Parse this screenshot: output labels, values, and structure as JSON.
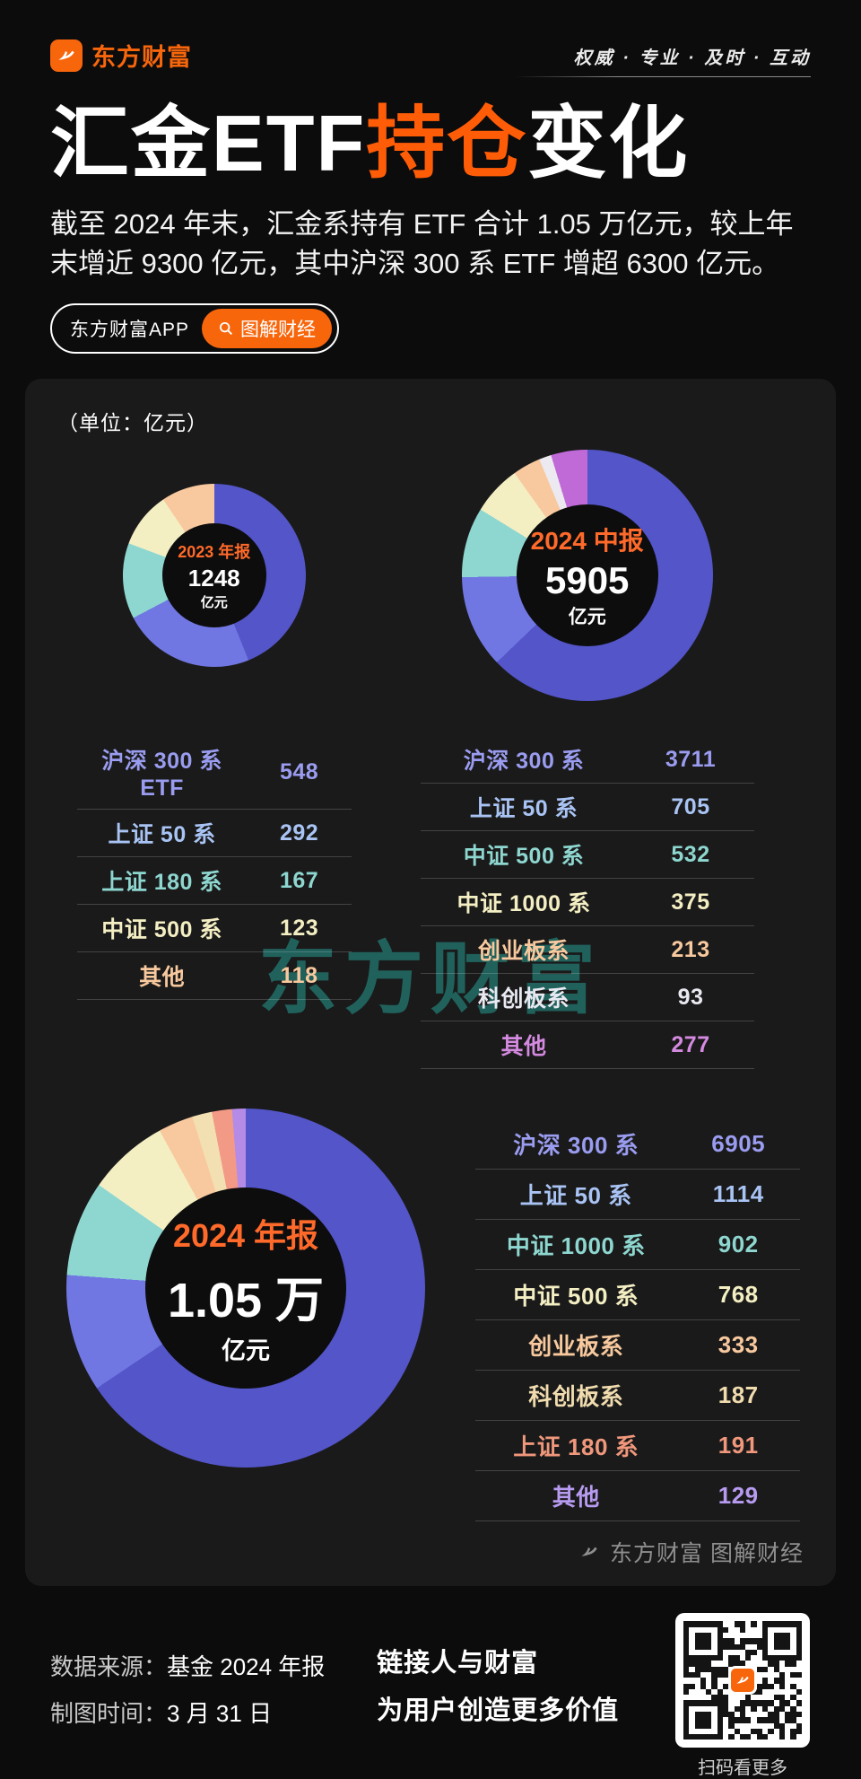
{
  "colors": {
    "accent": "#ff5c07",
    "page_bg": "#0c0c0c",
    "panel_bg": "#1a1a1a",
    "watermark_teal": "#27a79d"
  },
  "header": {
    "brand": "东方财富",
    "slogan": "权威 · 专业 · 及时 · 互动"
  },
  "title": {
    "pre": "汇金ETF",
    "highlight": "持仓",
    "post": "变化"
  },
  "intro": "截至 2024 年末，汇金系持有 ETF 合计 1.05 万亿元，较上年末增近 9300 亿元，其中沪深 300 系 ETF 增超 6300 亿元。",
  "pills": {
    "app": "东方财富APP",
    "tag": "图解财经"
  },
  "panel": {
    "unit_note": "（单位：亿元）",
    "watermark": "东方财富",
    "footer_brand": "东方财富 图解财经"
  },
  "chart_data": [
    {
      "type": "pie",
      "title": "2023 年报",
      "center_value": "1248",
      "center_unit": "亿元",
      "unit": "亿元",
      "legend_position": "below",
      "categories": [
        "沪深 300 系 ETF",
        "上证 50 系",
        "上证 180 系",
        "中证 500 系",
        "其他"
      ],
      "values": [
        548,
        292,
        167,
        123,
        118
      ],
      "slice_colors": [
        "#5355c8",
        "#7077e2",
        "#8ed7d0",
        "#f4efc3",
        "#f8c99e"
      ],
      "text_colors": [
        "#9a9cf0",
        "#a9c4f4",
        "#8ed7d0",
        "#f4efc3",
        "#f8c99e"
      ]
    },
    {
      "type": "pie",
      "title": "2024 中报",
      "center_value": "5905",
      "center_unit": "亿元",
      "unit": "亿元",
      "legend_position": "below",
      "categories": [
        "沪深 300 系",
        "上证 50 系",
        "中证 500 系",
        "中证 1000 系",
        "创业板系",
        "科创板系",
        "其他"
      ],
      "values": [
        3711,
        705,
        532,
        375,
        213,
        93,
        277
      ],
      "slice_colors": [
        "#5355c8",
        "#7077e2",
        "#8ed7d0",
        "#f4efc3",
        "#f8c99e",
        "#ece9f0",
        "#c06ad8"
      ],
      "text_colors": [
        "#9a9cf0",
        "#a9c4f4",
        "#8ed7d0",
        "#f4efc3",
        "#f8c99e",
        "#e9e9f2",
        "#d48ae0"
      ]
    },
    {
      "type": "pie",
      "title": "2024 年报",
      "center_value": "1.05 万",
      "center_unit": "亿元",
      "unit": "亿元",
      "legend_position": "right",
      "categories": [
        "沪深 300 系",
        "上证 50 系",
        "中证 1000 系",
        "中证 500 系",
        "创业板系",
        "科创板系",
        "上证 180 系",
        "其他"
      ],
      "values": [
        6905,
        1114,
        902,
        768,
        333,
        187,
        191,
        129
      ],
      "slice_colors": [
        "#5355c8",
        "#7077e2",
        "#8ed7d0",
        "#f4efc3",
        "#f8c99e",
        "#f3e0b2",
        "#f29a86",
        "#b48be6"
      ],
      "text_colors": [
        "#9a9cf0",
        "#a9c4f4",
        "#8ed7d0",
        "#f4efc3",
        "#f8c99e",
        "#f0dcae",
        "#f0977c",
        "#b79bf0"
      ]
    }
  ],
  "footer": {
    "source_label": "数据来源：",
    "source_value": "基金 2024 年报",
    "date_label": "制图时间：",
    "date_value": "3 月 31 日",
    "slogan_line1": "链接人与财富",
    "slogan_line2": "为用户创造更多价值",
    "qr_caption": "扫码看更多"
  }
}
